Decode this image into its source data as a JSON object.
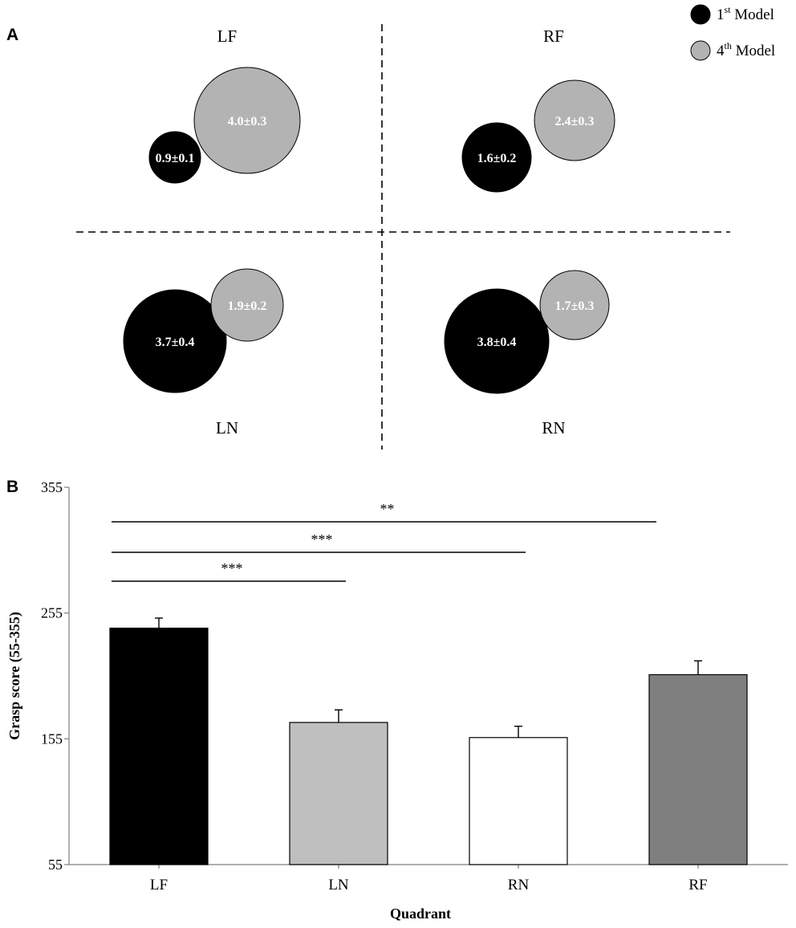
{
  "panel_a": {
    "letter": "A",
    "legend": [
      {
        "base": "1",
        "sup": "st",
        "text": " Model",
        "color": "#000000"
      },
      {
        "base": "4",
        "sup": "th",
        "text": " Model",
        "color": "#b3b3b3"
      }
    ],
    "quadrants": [
      {
        "label": "LF",
        "bubbles": [
          {
            "model": "1st",
            "mean": 0.9,
            "sd": 0.1,
            "text": "0.9±0.1"
          },
          {
            "model": "4th",
            "mean": 4.0,
            "sd": 0.3,
            "text": "4.0±0.3"
          }
        ]
      },
      {
        "label": "RF",
        "bubbles": [
          {
            "model": "1st",
            "mean": 1.6,
            "sd": 0.2,
            "text": "1.6±0.2"
          },
          {
            "model": "4th",
            "mean": 2.4,
            "sd": 0.3,
            "text": "2.4±0.3"
          }
        ]
      },
      {
        "label": "LN",
        "bubbles": [
          {
            "model": "1st",
            "mean": 3.7,
            "sd": 0.4,
            "text": "3.7±0.4"
          },
          {
            "model": "4th",
            "mean": 1.9,
            "sd": 0.2,
            "text": "1.9±0.2"
          }
        ]
      },
      {
        "label": "RN",
        "bubbles": [
          {
            "model": "1st",
            "mean": 3.8,
            "sd": 0.4,
            "text": "3.8±0.4"
          },
          {
            "model": "4th",
            "mean": 1.7,
            "sd": 0.3,
            "text": "1.7±0.3"
          }
        ]
      }
    ]
  },
  "panel_b": {
    "letter": "B"
  },
  "chart_data": {
    "type": "bar",
    "categories": [
      "LF",
      "LN",
      "RN",
      "RF"
    ],
    "values": [
      243,
      168,
      156,
      206
    ],
    "errors": [
      8,
      10,
      9,
      11
    ],
    "colors": [
      "#000000",
      "#bfbfbf",
      "#ffffff",
      "#7f7f7f"
    ],
    "title": "",
    "xlabel": "Quadrant",
    "ylabel": "Grasp score (55-355)",
    "ylim": [
      55,
      355
    ],
    "yticks": [
      55,
      155,
      255,
      355
    ],
    "grid": false,
    "significance": [
      {
        "from": "LF",
        "to": "LN",
        "label": "***"
      },
      {
        "from": "LF",
        "to": "RN",
        "label": "***"
      },
      {
        "from": "LF",
        "to": "RF",
        "label": "**"
      }
    ]
  }
}
